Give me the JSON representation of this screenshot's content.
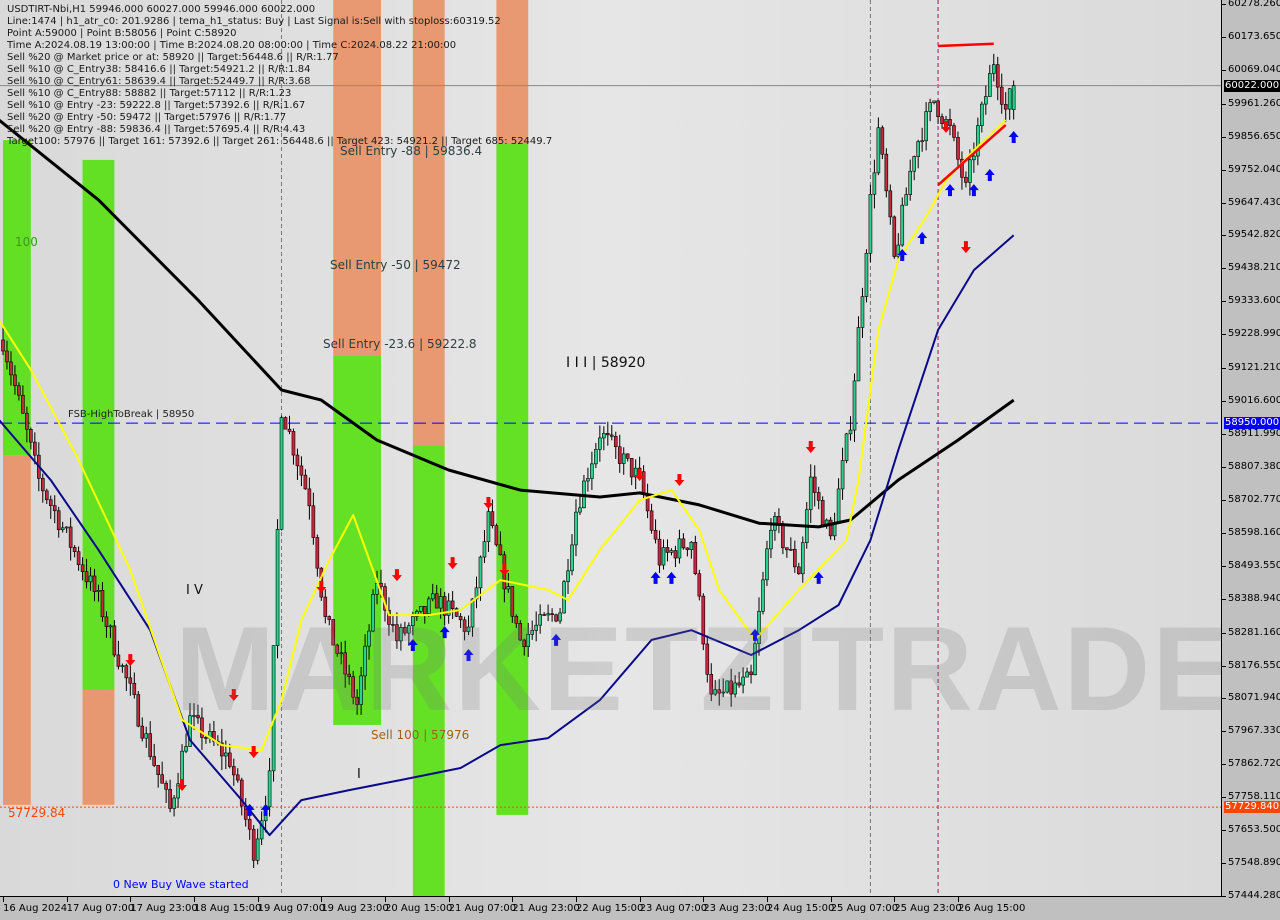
{
  "header": {
    "symbol_line": "USDTIRT-Nbi,H1  59946.000 60027.000 59946.000 60022.000",
    "info_lines": [
      "Line:1474 | h1_atr_c0: 201.9286 | tema_h1_status: Buy | Last Signal is:Sell with stoploss:60319.52",
      "Point A:59000 | Point B:58056 | Point C:58920",
      "Time A:2024.08.19 13:00:00 | Time B:2024.08.20 08:00:00 | Time C:2024.08.22 21:00:00",
      "Sell %20 @ Market price or at: 58920 || Target:56448.6 || R/R:1.77",
      "Sell %10 @ C_Entry38: 58416.6 || Target:54921.2 || R/R:1.84",
      "Sell %10 @ C_Entry61: 58639.4 || Target:52449.7 || R/R:3.68",
      "Sell %10 @ C_Entry88: 58882 || Target:57112 || R/R:1.23",
      "Sell %10 @ Entry -23: 59222.8 || Target:57392.6 || R/R:1.67",
      "Sell %20 @ Entry -50: 59472 || Target:57976 || R/R:1.77",
      "Sell %20 @ Entry -88: 59836.4 || Target:57695.4 || R/R:4.43",
      "Target100: 57976 || Target 161: 57392.6 || Target 261: 56448.6 || Target 423: 54921.2 || Target 685: 52449.7"
    ]
  },
  "labels": {
    "sell_entry_88": "Sell Entry -88 | 59836.4",
    "sell_entry_50": "Sell Entry -50 | 59472",
    "sell_entry_23": "Sell Entry -23.6 | 59222.8",
    "wave_iii": "I I I | 58920",
    "fsb": "FSB-HighToBreak | 58950",
    "hundred": "100",
    "wave_iv": "I V",
    "wave_i": "I",
    "sell_100": "Sell 100 | 57976",
    "level_57729": "57729.84",
    "new_wave": "0 New Buy Wave started",
    "watermark": "MARKETZITRADE"
  },
  "colors": {
    "bull": "#2bd08a",
    "bear": "#c8283c",
    "ma_slow": "#000000",
    "ma_mid": "#0a0a8a",
    "tema": "#ffff00",
    "fsb_line": "#0000ff",
    "level_line": "#ff4500",
    "band_green": "#5ee01a",
    "band_orange": "#e8956a",
    "arrow_sell": "#ff0000",
    "arrow_buy": "#0000ff"
  },
  "chart_data": {
    "type": "candlestick",
    "symbol": "USDTIRT-Nbi",
    "timeframe": "H1",
    "ohlc_last": {
      "open": 59946.0,
      "high": 60027.0,
      "low": 59946.0,
      "close": 60022.0
    },
    "ylim": [
      57444.28,
      60278.26
    ],
    "y_ticks": [
      "60278.260",
      "60173.650",
      "60069.040",
      "59961.260",
      "59856.650",
      "59752.040",
      "59647.430",
      "59542.820",
      "59438.210",
      "59333.600",
      "59228.990",
      "59121.210",
      "59016.600",
      "58911.990",
      "58807.380",
      "58702.770",
      "58598.160",
      "58493.550",
      "58388.940",
      "58281.160",
      "58176.550",
      "58071.940",
      "57967.330",
      "57862.720",
      "57758.110",
      "57653.500",
      "57548.890",
      "57444.280"
    ],
    "x_ticks": [
      "16 Aug 2024",
      "17 Aug 07:00",
      "17 Aug 23:00",
      "18 Aug 15:00",
      "19 Aug 07:00",
      "19 Aug 23:00",
      "20 Aug 15:00",
      "21 Aug 07:00",
      "21 Aug 23:00",
      "22 Aug 15:00",
      "23 Aug 07:00",
      "23 Aug 23:00",
      "24 Aug 15:00",
      "25 Aug 07:00",
      "25 Aug 23:00",
      "26 Aug 15:00"
    ],
    "price_badges": [
      {
        "value": "60022.000",
        "price": 60022.0,
        "color": "#000000"
      },
      {
        "value": "58950.000",
        "price": 58950.0,
        "color": "#0000ff"
      },
      {
        "value": "57729.840",
        "price": 57729.84,
        "color": "#ff4500"
      }
    ],
    "price_path": [
      [
        "2024-08-16 15:00",
        59214
      ],
      [
        "2024-08-17 00:00",
        58769
      ],
      [
        "2024-08-17 15:00",
        58388
      ],
      [
        "2024-08-17 22:00",
        58134
      ],
      [
        "2024-08-18 09:00",
        57721
      ],
      [
        "2024-08-18 14:00",
        58007
      ],
      [
        "2024-08-19 00:00",
        57880
      ],
      [
        "2024-08-19 06:00",
        57594
      ],
      [
        "2024-08-19 10:00",
        57816
      ],
      [
        "2024-08-19 13:00",
        59000
      ],
      [
        "2024-08-19 20:00",
        58706
      ],
      [
        "2024-08-20 00:00",
        58325
      ],
      [
        "2024-08-20 08:00",
        58056
      ],
      [
        "2024-08-20 13:00",
        58452
      ],
      [
        "2024-08-20 18:00",
        58262
      ],
      [
        "2024-08-21 04:00",
        58389
      ],
      [
        "2024-08-21 12:00",
        58293
      ],
      [
        "2024-08-21 17:00",
        58643
      ],
      [
        "2024-08-22 01:00",
        58262
      ],
      [
        "2024-08-22 11:00",
        58357
      ],
      [
        "2024-08-22 15:00",
        58674
      ],
      [
        "2024-08-22 21:00",
        58920
      ],
      [
        "2024-08-23 07:00",
        58770
      ],
      [
        "2024-08-23 12:00",
        58516
      ],
      [
        "2024-08-23 20:00",
        58580
      ],
      [
        "2024-08-24 01:00",
        58071
      ],
      [
        "2024-08-24 11:00",
        58134
      ],
      [
        "2024-08-24 16:00",
        58643
      ],
      [
        "2024-08-24 23:00",
        58484
      ],
      [
        "2024-08-25 02:00",
        58770
      ],
      [
        "2024-08-25 07:00",
        58580
      ],
      [
        "2024-08-25 12:00",
        58960
      ],
      [
        "2024-08-25 17:00",
        59658
      ],
      [
        "2024-08-25 19:00",
        59880
      ],
      [
        "2024-08-25 23:00",
        59468
      ],
      [
        "2024-08-26 04:00",
        59817
      ],
      [
        "2024-08-26 09:00",
        59976
      ],
      [
        "2024-08-26 13:00",
        59880
      ],
      [
        "2024-08-26 17:00",
        59690
      ],
      [
        "2024-08-26 20:00",
        59880
      ],
      [
        "2024-08-27 00:00",
        60103
      ],
      [
        "2024-08-27 03:00",
        59944
      ],
      [
        "2024-08-27 05:00",
        60022
      ]
    ],
    "overlays": [
      {
        "id": "ma-slow",
        "color": "#000000",
        "points": [
          [
            "2024-08-16 14:00",
            59913
          ],
          [
            "2024-08-17 15:00",
            59659
          ],
          [
            "2024-08-18 16:00",
            59341
          ],
          [
            "2024-08-19 13:00",
            59055
          ],
          [
            "2024-08-19 23:00",
            59023
          ],
          [
            "2024-08-20 13:00",
            58896
          ],
          [
            "2024-08-21 07:00",
            58801
          ],
          [
            "2024-08-22 01:00",
            58737
          ],
          [
            "2024-08-22 21:00",
            58715
          ],
          [
            "2024-08-23 07:00",
            58728
          ],
          [
            "2024-08-23 22:00",
            58690
          ],
          [
            "2024-08-24 13:00",
            58632
          ],
          [
            "2024-08-25 04:00",
            58620
          ],
          [
            "2024-08-25 12:00",
            58642
          ],
          [
            "2024-08-26 00:00",
            58769
          ],
          [
            "2024-08-26 15:00",
            58896
          ],
          [
            "2024-08-27 05:00",
            59023
          ]
        ]
      },
      {
        "id": "ma-mid",
        "color": "#0a0a8a",
        "points": [
          [
            "2024-08-16 14:00",
            58960
          ],
          [
            "2024-08-17 03:00",
            58769
          ],
          [
            "2024-08-17 15:00",
            58547
          ],
          [
            "2024-08-18 04:00",
            58292
          ],
          [
            "2024-08-18 14:00",
            57943
          ],
          [
            "2024-08-19 03:00",
            57752
          ],
          [
            "2024-08-19 10:00",
            57641
          ],
          [
            "2024-08-19 18:00",
            57752
          ],
          [
            "2024-08-20 06:00",
            57784
          ],
          [
            "2024-08-20 19:00",
            57816
          ],
          [
            "2024-08-21 10:00",
            57854
          ],
          [
            "2024-08-21 20:00",
            57927
          ],
          [
            "2024-08-22 08:00",
            57949
          ],
          [
            "2024-08-22 21:00",
            58070
          ],
          [
            "2024-08-23 10:00",
            58261
          ],
          [
            "2024-08-23 20:00",
            58292
          ],
          [
            "2024-08-24 11:00",
            58213
          ],
          [
            "2024-08-24 23:00",
            58292
          ],
          [
            "2024-08-25 09:00",
            58372
          ],
          [
            "2024-08-25 17:00",
            58578
          ],
          [
            "2024-08-26 00:00",
            58864
          ],
          [
            "2024-08-26 10:00",
            59246
          ],
          [
            "2024-08-26 19:00",
            59436
          ],
          [
            "2024-08-27 05:00",
            59547
          ]
        ]
      },
      {
        "id": "tema",
        "color": "#ffff00",
        "points": [
          [
            "2024-08-16 14:00",
            59277
          ],
          [
            "2024-08-16 22:00",
            59119
          ],
          [
            "2024-08-17 10:00",
            58833
          ],
          [
            "2024-08-17 23:00",
            58483
          ],
          [
            "2024-08-18 12:00",
            58007
          ],
          [
            "2024-08-18 22:00",
            57927
          ],
          [
            "2024-08-19 08:00",
            57911
          ],
          [
            "2024-08-19 13:00",
            58070
          ],
          [
            "2024-08-19 18:00",
            58324
          ],
          [
            "2024-08-20 01:00",
            58515
          ],
          [
            "2024-08-20 07:00",
            58658
          ],
          [
            "2024-08-20 12:00",
            58483
          ],
          [
            "2024-08-20 16:00",
            58340
          ],
          [
            "2024-08-21 02:00",
            58340
          ],
          [
            "2024-08-21 10:00",
            58356
          ],
          [
            "2024-08-21 20:00",
            58451
          ],
          [
            "2024-08-22 08:00",
            58420
          ],
          [
            "2024-08-22 13:00",
            58388
          ],
          [
            "2024-08-22 21:00",
            58547
          ],
          [
            "2024-08-23 07:00",
            58705
          ],
          [
            "2024-08-23 15:00",
            58737
          ],
          [
            "2024-08-23 22:00",
            58610
          ],
          [
            "2024-08-24 03:00",
            58420
          ],
          [
            "2024-08-24 12:00",
            58261
          ],
          [
            "2024-08-24 23:00",
            58420
          ],
          [
            "2024-08-25 11:00",
            58578
          ],
          [
            "2024-08-25 14:00",
            58769
          ],
          [
            "2024-08-25 19:00",
            59246
          ],
          [
            "2024-08-26 00:00",
            59468
          ],
          [
            "2024-08-26 08:00",
            59627
          ],
          [
            "2024-08-26 12:00",
            59722
          ],
          [
            "2024-08-26 19:00",
            59817
          ],
          [
            "2024-08-27 03:00",
            59913
          ]
        ]
      }
    ],
    "bands": [
      {
        "from": "2024-08-16 15:00",
        "to": "2024-08-16 22:00",
        "segments": [
          {
            "color": "green",
            "top": 59849,
            "bottom": 58848
          },
          {
            "color": "orange",
            "top": 58848,
            "bottom": 57737
          }
        ]
      },
      {
        "from": "2024-08-17 11:00",
        "to": "2024-08-17 19:00",
        "segments": [
          {
            "color": "green",
            "top": 59786,
            "bottom": 58102
          },
          {
            "color": "orange",
            "top": 58102,
            "bottom": 57737
          }
        ]
      },
      {
        "from": "2024-08-20 02:00",
        "to": "2024-08-20 14:00",
        "segments": [
          {
            "color": "orange",
            "top": 60300,
            "bottom": 59166
          },
          {
            "color": "green",
            "top": 59166,
            "bottom": 57991
          }
        ]
      },
      {
        "from": "2024-08-20 22:00",
        "to": "2024-08-21 06:00",
        "segments": [
          {
            "color": "orange",
            "top": 60300,
            "bottom": 58880
          },
          {
            "color": "green",
            "top": 58880,
            "bottom": 57444
          }
        ]
      },
      {
        "from": "2024-08-21 19:00",
        "to": "2024-08-22 03:00",
        "segments": [
          {
            "color": "orange",
            "top": 60300,
            "bottom": 59840
          },
          {
            "color": "green",
            "top": 59840,
            "bottom": 57705
          }
        ]
      }
    ],
    "horizontal_levels": [
      {
        "price": 58950,
        "style": "dashed",
        "color": "#0000ff"
      },
      {
        "price": 57729.84,
        "style": "dotted",
        "color": "#ff4500"
      },
      {
        "price": 60022,
        "style": "solid",
        "color": "#888888"
      }
    ],
    "vertical_markers": [
      {
        "time": "2024-08-19 13:00",
        "color": "#777777"
      },
      {
        "time": "2024-08-25 17:00",
        "color": "#777777"
      },
      {
        "time": "2024-08-26 10:00",
        "color": "#aa1166"
      }
    ],
    "red_segments": [
      {
        "from": [
          "2024-08-26 10:00",
          60148
        ],
        "to": [
          "2024-08-27 00:00",
          60155
        ]
      },
      {
        "from": [
          "2024-08-26 10:00",
          59706
        ],
        "to": [
          "2024-08-27 03:00",
          59897
        ]
      }
    ],
    "sell_arrows": [
      [
        "2024-08-17 23:00",
        58197
      ],
      [
        "2024-08-18 12:00",
        57800
      ],
      [
        "2024-08-19 01:00",
        58086
      ],
      [
        "2024-08-19 06:00",
        57905
      ],
      [
        "2024-08-19 23:00",
        58429
      ],
      [
        "2024-08-20 18:00",
        58467
      ],
      [
        "2024-08-21 08:00",
        58505
      ],
      [
        "2024-08-21 17:00",
        58696
      ],
      [
        "2024-08-21 21:00",
        58483
      ],
      [
        "2024-08-23 07:00",
        58785
      ],
      [
        "2024-08-23 17:00",
        58769
      ],
      [
        "2024-08-25 02:00",
        58874
      ],
      [
        "2024-08-26 12:00",
        59891
      ],
      [
        "2024-08-26 17:00",
        59509
      ]
    ],
    "buy_arrows": [
      [
        "2024-08-19 05:00",
        57721
      ],
      [
        "2024-08-19 09:00",
        57721
      ],
      [
        "2024-08-20 22:00",
        58245
      ],
      [
        "2024-08-21 06:00",
        58286
      ],
      [
        "2024-08-21 12:00",
        58213
      ],
      [
        "2024-08-22 10:00",
        58261
      ],
      [
        "2024-08-23 11:00",
        58458
      ],
      [
        "2024-08-23 15:00",
        58458
      ],
      [
        "2024-08-24 12:00",
        58277
      ],
      [
        "2024-08-25 04:00",
        58458
      ],
      [
        "2024-08-26 01:00",
        59484
      ],
      [
        "2024-08-26 06:00",
        59538
      ],
      [
        "2024-08-26 13:00",
        59690
      ],
      [
        "2024-08-26 19:00",
        59690
      ],
      [
        "2024-08-26 23:00",
        59738
      ],
      [
        "2024-08-27 05:00",
        59859
      ]
    ]
  }
}
